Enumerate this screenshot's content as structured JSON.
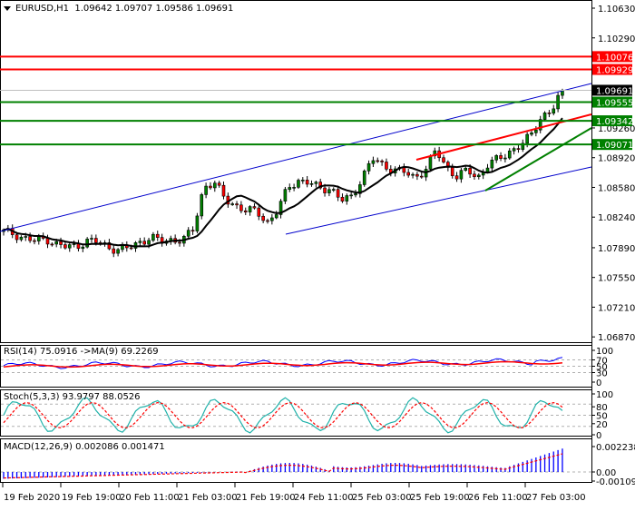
{
  "header": {
    "symbol": "EURUSD,H1",
    "open": "1.09642",
    "high": "1.09707",
    "low": "1.09586",
    "close": "1.09691"
  },
  "price_axis": {
    "ticks": [
      "1.10630",
      "1.10290",
      "1.09260",
      "1.08920",
      "1.08580",
      "1.08240",
      "1.07890",
      "1.07550",
      "1.07210",
      "1.06870"
    ],
    "labels": [
      {
        "value": "1.10076",
        "bg": "#ff0000",
        "fg": "#ffffff"
      },
      {
        "value": "1.09929",
        "bg": "#ff0000",
        "fg": "#ffffff"
      },
      {
        "value": "1.09691",
        "bg": "#000000",
        "fg": "#ffffff"
      },
      {
        "value": "1.09555",
        "bg": "#008000",
        "fg": "#ffffff"
      },
      {
        "value": "1.09342",
        "bg": "#008000",
        "fg": "#ffffff"
      },
      {
        "value": "1.09071",
        "bg": "#008000",
        "fg": "#ffffff"
      }
    ]
  },
  "rsi": {
    "label": "RSI(14) 75.0916  ->MA(9) 69.2269",
    "ticks": [
      "100",
      "70",
      "50",
      "30",
      "0"
    ]
  },
  "stoch": {
    "label": "Stoch(5,3,3) 93.9797 88.0526",
    "ticks": [
      "100",
      "80",
      "50",
      "20",
      "0"
    ]
  },
  "macd": {
    "label": "MACD(12,26,9) 0.002086 0.001471",
    "ticks": [
      "0.002238",
      "0.00",
      "-0.001096"
    ]
  },
  "time_axis": {
    "labels": [
      "19 Feb 2020",
      "19 Feb 19:00",
      "20 Feb 11:00",
      "21 Feb 03:00",
      "21 Feb 19:00",
      "24 Feb 11:00",
      "25 Feb 03:00",
      "25 Feb 19:00",
      "26 Feb 11:00",
      "27 Feb 03:00"
    ]
  },
  "colors": {
    "bull": "#008000",
    "bear": "#ff0000",
    "ma": "#000000",
    "channel": "#0000cc",
    "resistance": "#ff0000",
    "support": "#008000",
    "rsi": "#0000ff",
    "rsi_ma": "#ff0000",
    "stoch_main": "#20b2aa",
    "stoch_signal": "#ff0000",
    "macd_hist": "#0000ff",
    "macd_signal": "#ff0000"
  },
  "chart_data": [
    {
      "type": "candlestick",
      "title": "EURUSD,H1",
      "ohlc_last": {
        "open": 1.09642,
        "high": 1.09707,
        "low": 1.09586,
        "close": 1.09691
      },
      "ylim": [
        1.0687,
        1.1072
      ],
      "yticks": [
        1.1063,
        1.1029,
        1.0926,
        1.0892,
        1.0858,
        1.0824,
        1.0789,
        1.0755,
        1.0721,
        1.0687
      ],
      "x_labels": [
        "19 Feb 2020",
        "19 Feb 19:00",
        "20 Feb 11:00",
        "21 Feb 03:00",
        "21 Feb 19:00",
        "24 Feb 11:00",
        "25 Feb 03:00",
        "25 Feb 19:00",
        "26 Feb 11:00",
        "27 Feb 03:00"
      ],
      "horizontal_levels": [
        {
          "price": 1.10076,
          "color": "red",
          "role": "resistance"
        },
        {
          "price": 1.09929,
          "color": "red",
          "role": "resistance"
        },
        {
          "price": 1.09555,
          "color": "green",
          "role": "support"
        },
        {
          "price": 1.09342,
          "color": "green",
          "role": "support"
        },
        {
          "price": 1.09071,
          "color": "green",
          "role": "support"
        }
      ],
      "trend_lines": [
        "ascending blue channel (upper & lower)",
        "red resistance trendline from 25 Feb",
        "green support trendline from 26 Feb"
      ],
      "approx_close_series": [
        1.0807,
        1.0805,
        1.08,
        1.0796,
        1.08,
        1.0793,
        1.0789,
        1.0792,
        1.0797,
        1.0795,
        1.079,
        1.0786,
        1.0789,
        1.0797,
        1.08,
        1.0796,
        1.0799,
        1.0797,
        1.081,
        1.086,
        1.0862,
        1.0845,
        1.0838,
        1.083,
        1.0832,
        1.0818,
        1.083,
        1.086,
        1.0866,
        1.0862,
        1.0858,
        1.0857,
        1.0842,
        1.0848,
        1.0869,
        1.089,
        1.0884,
        1.0878,
        1.0875,
        1.087,
        1.0878,
        1.09,
        1.0882,
        1.087,
        1.0877,
        1.087,
        1.0885,
        1.089,
        1.09,
        1.0905,
        1.0917,
        1.094,
        1.0945,
        1.0969
      ],
      "indicator": "MA (black)"
    },
    {
      "type": "line",
      "title": "RSI(14) 75.0916 ->MA(9) 69.2269",
      "ylim": [
        0,
        100
      ],
      "yticks": [
        100,
        70,
        50,
        30,
        0
      ],
      "series": [
        {
          "name": "RSI(14)",
          "last": 75.0916
        },
        {
          "name": "MA(9)",
          "last": 69.2269
        }
      ]
    },
    {
      "type": "line",
      "title": "Stoch(5,3,3) 93.9797 88.0526",
      "ylim": [
        0,
        100
      ],
      "yticks": [
        100,
        80,
        50,
        20,
        0
      ],
      "series": [
        {
          "name": "%K",
          "last": 93.9797
        },
        {
          "name": "%D",
          "last": 88.0526
        }
      ]
    },
    {
      "type": "bar",
      "title": "MACD(12,26,9) 0.002086 0.001471",
      "ylim": [
        -0.001096,
        0.002238
      ],
      "yticks": [
        0.002238,
        0.0,
        -0.001096
      ],
      "series": [
        {
          "name": "MACD",
          "last": 0.002086
        },
        {
          "name": "Signal",
          "last": 0.001471
        }
      ]
    }
  ]
}
